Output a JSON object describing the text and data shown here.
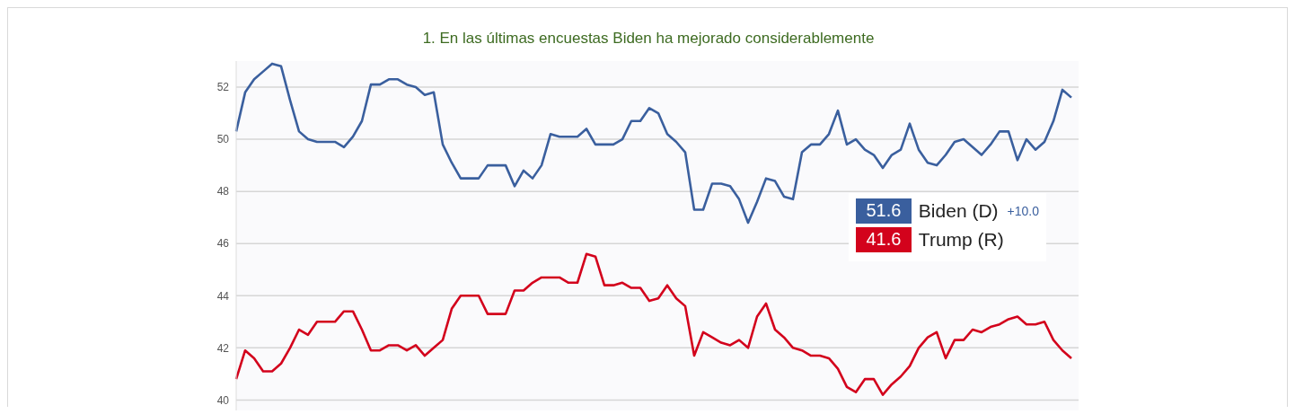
{
  "chart_data": {
    "type": "line",
    "title": "1. En las últimas encuestas Biden ha mejorado considerablemente",
    "categories": [
      null,
      null,
      null,
      null,
      null,
      null,
      null,
      null,
      null,
      null,
      null,
      null,
      null,
      null,
      null,
      null,
      null,
      null,
      null,
      null,
      null,
      null,
      null,
      null,
      null,
      null,
      null,
      null,
      null,
      null,
      null,
      null,
      null,
      null,
      null,
      null,
      null,
      null,
      null,
      null,
      null,
      null,
      null,
      null,
      null,
      null,
      null,
      null,
      null,
      null,
      null,
      null,
      null,
      null,
      null,
      null,
      null,
      null,
      null,
      null,
      null,
      null,
      null,
      null,
      null,
      null,
      null,
      null,
      null,
      null,
      null,
      null,
      null,
      null,
      null,
      null,
      null,
      null,
      null,
      null,
      null,
      null,
      null,
      null,
      null,
      null,
      null,
      null,
      null,
      null,
      null,
      null,
      null,
      null
    ],
    "series": [
      {
        "name": "Biden (D)",
        "color": "#3a5f9e",
        "values": [
          50.3,
          51.8,
          52.3,
          52.6,
          52.9,
          52.8,
          51.5,
          50.3,
          50.0,
          49.9,
          49.9,
          49.9,
          49.7,
          50.1,
          50.7,
          52.1,
          52.1,
          52.3,
          52.3,
          52.1,
          52.0,
          51.7,
          51.8,
          49.8,
          49.1,
          48.5,
          48.5,
          48.5,
          49.0,
          49.0,
          49.0,
          48.2,
          48.8,
          48.5,
          49.0,
          50.2,
          50.1,
          50.1,
          50.1,
          50.4,
          49.8,
          49.8,
          49.8,
          50.0,
          50.7,
          50.7,
          51.2,
          51.0,
          50.2,
          49.9,
          49.5,
          47.3,
          47.3,
          48.3,
          48.3,
          48.2,
          47.7,
          46.8,
          47.6,
          48.5,
          48.4,
          47.8,
          47.7,
          49.5,
          49.8,
          49.8,
          50.2,
          51.1,
          49.8,
          50.0,
          49.6,
          49.4,
          48.9,
          49.4,
          49.6,
          50.6,
          49.6,
          49.1,
          49.0,
          49.4,
          49.9,
          50.0,
          49.7,
          49.4,
          49.8,
          50.3,
          50.3,
          49.2,
          50.0,
          49.6,
          49.9,
          50.7,
          51.9,
          51.6
        ]
      },
      {
        "name": "Trump (R)",
        "color": "#d3021c",
        "values": [
          40.8,
          41.9,
          41.6,
          41.1,
          41.1,
          41.4,
          42.0,
          42.7,
          42.5,
          43.0,
          43.0,
          43.0,
          43.4,
          43.4,
          42.7,
          41.9,
          41.9,
          42.1,
          42.1,
          41.9,
          42.1,
          41.7,
          42.0,
          42.3,
          43.5,
          44.0,
          44.0,
          44.0,
          43.3,
          43.3,
          43.3,
          44.2,
          44.2,
          44.5,
          44.7,
          44.7,
          44.7,
          44.5,
          44.5,
          45.6,
          45.5,
          44.4,
          44.4,
          44.5,
          44.3,
          44.3,
          43.8,
          43.9,
          44.4,
          43.9,
          43.6,
          41.7,
          42.6,
          42.4,
          42.2,
          42.1,
          42.3,
          42.0,
          43.2,
          43.7,
          42.7,
          42.4,
          42.0,
          41.9,
          41.7,
          41.7,
          41.6,
          41.2,
          40.5,
          40.3,
          40.8,
          40.8,
          40.2,
          40.6,
          40.9,
          41.3,
          42.0,
          42.4,
          42.6,
          41.6,
          42.3,
          42.3,
          42.7,
          42.6,
          42.8,
          42.9,
          43.1,
          43.2,
          42.9,
          42.9,
          43.0,
          42.3,
          41.9,
          41.6
        ]
      }
    ],
    "ylim": [
      39.6,
      53
    ],
    "yticks": [
      40,
      42,
      44,
      46,
      48,
      50,
      52
    ],
    "grid": "y",
    "tick_labels": "y",
    "legend": "right",
    "annotations": [
      "51.6",
      "+10.0",
      "41.6"
    ]
  }
}
